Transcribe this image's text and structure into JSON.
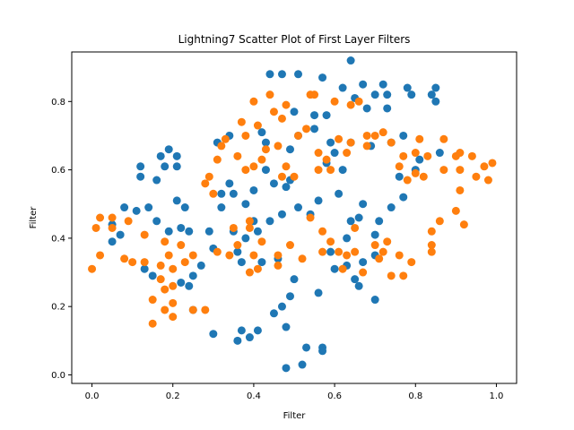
{
  "chart_data": {
    "type": "scatter",
    "title": "Lightning7 Scatter Plot of First Layer Filters",
    "xlabel": "Filter",
    "ylabel": "Filter",
    "xlim": [
      -0.05,
      1.05
    ],
    "ylim": [
      -0.025,
      0.945
    ],
    "xticks": [
      0.0,
      0.2,
      0.4,
      0.6,
      0.8,
      1.0
    ],
    "xtick_labels": [
      "0.0",
      "0.2",
      "0.4",
      "0.6",
      "0.8",
      "1.0"
    ],
    "yticks": [
      0.0,
      0.2,
      0.4,
      0.6,
      0.8
    ],
    "ytick_labels": [
      "0.0",
      "0.2",
      "0.4",
      "0.6",
      "0.8"
    ],
    "grid": false,
    "colors": [
      "#1f77b4",
      "#ff7f0e"
    ],
    "series": [
      {
        "color": "#1f77b4",
        "points": [
          [
            0.05,
            0.39
          ],
          [
            0.05,
            0.44
          ],
          [
            0.07,
            0.41
          ],
          [
            0.08,
            0.49
          ],
          [
            0.11,
            0.48
          ],
          [
            0.12,
            0.61
          ],
          [
            0.12,
            0.58
          ],
          [
            0.13,
            0.31
          ],
          [
            0.14,
            0.49
          ],
          [
            0.15,
            0.29
          ],
          [
            0.16,
            0.57
          ],
          [
            0.16,
            0.45
          ],
          [
            0.17,
            0.64
          ],
          [
            0.18,
            0.61
          ],
          [
            0.19,
            0.66
          ],
          [
            0.19,
            0.42
          ],
          [
            0.21,
            0.51
          ],
          [
            0.21,
            0.64
          ],
          [
            0.21,
            0.61
          ],
          [
            0.22,
            0.43
          ],
          [
            0.22,
            0.27
          ],
          [
            0.23,
            0.49
          ],
          [
            0.24,
            0.42
          ],
          [
            0.24,
            0.26
          ],
          [
            0.25,
            0.29
          ],
          [
            0.25,
            0.19
          ],
          [
            0.27,
            0.32
          ],
          [
            0.29,
            0.42
          ],
          [
            0.3,
            0.37
          ],
          [
            0.3,
            0.12
          ],
          [
            0.31,
            0.68
          ],
          [
            0.32,
            0.49
          ],
          [
            0.32,
            0.53
          ],
          [
            0.34,
            0.7
          ],
          [
            0.34,
            0.56
          ],
          [
            0.35,
            0.53
          ],
          [
            0.35,
            0.42
          ],
          [
            0.36,
            0.36
          ],
          [
            0.36,
            0.1
          ],
          [
            0.37,
            0.33
          ],
          [
            0.37,
            0.13
          ],
          [
            0.38,
            0.4
          ],
          [
            0.38,
            0.5
          ],
          [
            0.39,
            0.11
          ],
          [
            0.4,
            0.54
          ],
          [
            0.4,
            0.45
          ],
          [
            0.41,
            0.42
          ],
          [
            0.41,
            0.13
          ],
          [
            0.42,
            0.71
          ],
          [
            0.42,
            0.33
          ],
          [
            0.43,
            0.68
          ],
          [
            0.43,
            0.6
          ],
          [
            0.44,
            0.88
          ],
          [
            0.44,
            0.45
          ],
          [
            0.45,
            0.56
          ],
          [
            0.45,
            0.18
          ],
          [
            0.46,
            0.34
          ],
          [
            0.47,
            0.2
          ],
          [
            0.47,
            0.47
          ],
          [
            0.47,
            0.88
          ],
          [
            0.48,
            0.55
          ],
          [
            0.48,
            0.14
          ],
          [
            0.48,
            0.02
          ],
          [
            0.49,
            0.66
          ],
          [
            0.49,
            0.57
          ],
          [
            0.49,
            0.23
          ],
          [
            0.5,
            0.28
          ],
          [
            0.5,
            0.77
          ],
          [
            0.51,
            0.88
          ],
          [
            0.51,
            0.7
          ],
          [
            0.51,
            0.49
          ],
          [
            0.52,
            0.03
          ],
          [
            0.53,
            0.08
          ],
          [
            0.54,
            0.47
          ],
          [
            0.55,
            0.72
          ],
          [
            0.55,
            0.76
          ],
          [
            0.56,
            0.51
          ],
          [
            0.56,
            0.24
          ],
          [
            0.57,
            0.08
          ],
          [
            0.57,
            0.87
          ],
          [
            0.57,
            0.07
          ],
          [
            0.58,
            0.62
          ],
          [
            0.58,
            0.76
          ],
          [
            0.59,
            0.68
          ],
          [
            0.59,
            0.36
          ],
          [
            0.6,
            0.65
          ],
          [
            0.6,
            0.31
          ],
          [
            0.61,
            0.53
          ],
          [
            0.62,
            0.84
          ],
          [
            0.62,
            0.6
          ],
          [
            0.63,
            0.4
          ],
          [
            0.63,
            0.32
          ],
          [
            0.64,
            0.45
          ],
          [
            0.64,
            0.68
          ],
          [
            0.64,
            0.92
          ],
          [
            0.65,
            0.28
          ],
          [
            0.65,
            0.81
          ],
          [
            0.66,
            0.26
          ],
          [
            0.66,
            0.46
          ],
          [
            0.67,
            0.85
          ],
          [
            0.67,
            0.5
          ],
          [
            0.67,
            0.33
          ],
          [
            0.68,
            0.78
          ],
          [
            0.69,
            0.67
          ],
          [
            0.7,
            0.82
          ],
          [
            0.7,
            0.41
          ],
          [
            0.7,
            0.35
          ],
          [
            0.7,
            0.22
          ],
          [
            0.71,
            0.45
          ],
          [
            0.72,
            0.85
          ],
          [
            0.73,
            0.78
          ],
          [
            0.73,
            0.82
          ],
          [
            0.74,
            0.49
          ],
          [
            0.74,
            0.68
          ],
          [
            0.76,
            0.58
          ],
          [
            0.77,
            0.7
          ],
          [
            0.77,
            0.52
          ],
          [
            0.78,
            0.84
          ],
          [
            0.79,
            0.82
          ],
          [
            0.8,
            0.6
          ],
          [
            0.81,
            0.63
          ],
          [
            0.84,
            0.82
          ],
          [
            0.85,
            0.8
          ],
          [
            0.85,
            0.84
          ],
          [
            0.86,
            0.65
          ]
        ]
      },
      {
        "color": "#ff7f0e",
        "points": [
          [
            0.0,
            0.31
          ],
          [
            0.01,
            0.43
          ],
          [
            0.02,
            0.46
          ],
          [
            0.02,
            0.35
          ],
          [
            0.05,
            0.46
          ],
          [
            0.05,
            0.43
          ],
          [
            0.08,
            0.34
          ],
          [
            0.09,
            0.45
          ],
          [
            0.1,
            0.33
          ],
          [
            0.13,
            0.41
          ],
          [
            0.13,
            0.33
          ],
          [
            0.15,
            0.22
          ],
          [
            0.15,
            0.15
          ],
          [
            0.17,
            0.32
          ],
          [
            0.17,
            0.28
          ],
          [
            0.18,
            0.39
          ],
          [
            0.18,
            0.25
          ],
          [
            0.18,
            0.19
          ],
          [
            0.19,
            0.35
          ],
          [
            0.2,
            0.31
          ],
          [
            0.2,
            0.26
          ],
          [
            0.2,
            0.21
          ],
          [
            0.2,
            0.17
          ],
          [
            0.22,
            0.38
          ],
          [
            0.23,
            0.33
          ],
          [
            0.25,
            0.35
          ],
          [
            0.25,
            0.19
          ],
          [
            0.28,
            0.19
          ],
          [
            0.28,
            0.56
          ],
          [
            0.29,
            0.58
          ],
          [
            0.3,
            0.53
          ],
          [
            0.31,
            0.36
          ],
          [
            0.31,
            0.63
          ],
          [
            0.32,
            0.67
          ],
          [
            0.33,
            0.69
          ],
          [
            0.34,
            0.35
          ],
          [
            0.35,
            0.43
          ],
          [
            0.36,
            0.38
          ],
          [
            0.36,
            0.64
          ],
          [
            0.37,
            0.74
          ],
          [
            0.38,
            0.7
          ],
          [
            0.38,
            0.6
          ],
          [
            0.39,
            0.45
          ],
          [
            0.39,
            0.43
          ],
          [
            0.39,
            0.3
          ],
          [
            0.4,
            0.35
          ],
          [
            0.4,
            0.61
          ],
          [
            0.4,
            0.8
          ],
          [
            0.41,
            0.73
          ],
          [
            0.41,
            0.31
          ],
          [
            0.42,
            0.63
          ],
          [
            0.42,
            0.39
          ],
          [
            0.43,
            0.66
          ],
          [
            0.44,
            0.82
          ],
          [
            0.45,
            0.77
          ],
          [
            0.46,
            0.67
          ],
          [
            0.46,
            0.35
          ],
          [
            0.46,
            0.32
          ],
          [
            0.47,
            0.58
          ],
          [
            0.47,
            0.75
          ],
          [
            0.48,
            0.79
          ],
          [
            0.48,
            0.61
          ],
          [
            0.49,
            0.38
          ],
          [
            0.5,
            0.58
          ],
          [
            0.51,
            0.7
          ],
          [
            0.52,
            0.34
          ],
          [
            0.53,
            0.72
          ],
          [
            0.54,
            0.82
          ],
          [
            0.54,
            0.46
          ],
          [
            0.55,
            0.82
          ],
          [
            0.56,
            0.65
          ],
          [
            0.56,
            0.6
          ],
          [
            0.57,
            0.36
          ],
          [
            0.57,
            0.42
          ],
          [
            0.58,
            0.63
          ],
          [
            0.59,
            0.39
          ],
          [
            0.59,
            0.6
          ],
          [
            0.6,
            0.8
          ],
          [
            0.61,
            0.69
          ],
          [
            0.61,
            0.36
          ],
          [
            0.62,
            0.31
          ],
          [
            0.63,
            0.65
          ],
          [
            0.63,
            0.35
          ],
          [
            0.64,
            0.79
          ],
          [
            0.64,
            0.68
          ],
          [
            0.65,
            0.43
          ],
          [
            0.65,
            0.36
          ],
          [
            0.66,
            0.8
          ],
          [
            0.67,
            0.3
          ],
          [
            0.68,
            0.7
          ],
          [
            0.68,
            0.67
          ],
          [
            0.7,
            0.7
          ],
          [
            0.7,
            0.38
          ],
          [
            0.71,
            0.34
          ],
          [
            0.72,
            0.71
          ],
          [
            0.72,
            0.36
          ],
          [
            0.73,
            0.39
          ],
          [
            0.74,
            0.68
          ],
          [
            0.74,
            0.29
          ],
          [
            0.76,
            0.61
          ],
          [
            0.76,
            0.35
          ],
          [
            0.77,
            0.29
          ],
          [
            0.77,
            0.64
          ],
          [
            0.78,
            0.57
          ],
          [
            0.79,
            0.33
          ],
          [
            0.8,
            0.59
          ],
          [
            0.8,
            0.65
          ],
          [
            0.81,
            0.69
          ],
          [
            0.82,
            0.58
          ],
          [
            0.83,
            0.64
          ],
          [
            0.84,
            0.36
          ],
          [
            0.84,
            0.38
          ],
          [
            0.84,
            0.42
          ],
          [
            0.86,
            0.45
          ],
          [
            0.87,
            0.69
          ],
          [
            0.87,
            0.6
          ],
          [
            0.9,
            0.64
          ],
          [
            0.9,
            0.48
          ],
          [
            0.91,
            0.54
          ],
          [
            0.91,
            0.6
          ],
          [
            0.91,
            0.65
          ],
          [
            0.92,
            0.44
          ],
          [
            0.94,
            0.64
          ],
          [
            0.95,
            0.58
          ],
          [
            0.97,
            0.61
          ],
          [
            0.98,
            0.57
          ],
          [
            0.99,
            0.62
          ]
        ]
      }
    ]
  }
}
